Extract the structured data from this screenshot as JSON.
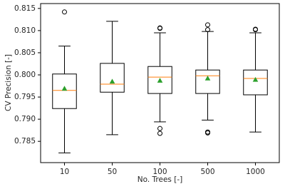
{
  "chart_data": {
    "type": "box",
    "x_label": "No. Trees [-]",
    "y_label": "CV Precision [-]",
    "categories": [
      "10",
      "50",
      "100",
      "500",
      "1000"
    ],
    "boxes": [
      {
        "whislo": 0.7824,
        "q1": 0.7924,
        "med": 0.7965,
        "q3": 0.8002,
        "whishi": 0.8065,
        "mean": 0.7969,
        "fliers": [
          0.8142
        ]
      },
      {
        "whislo": 0.7865,
        "q1": 0.7961,
        "med": 0.7979,
        "q3": 0.8026,
        "whishi": 0.8121,
        "mean": 0.7985,
        "fliers": []
      },
      {
        "whislo": 0.7894,
        "q1": 0.7958,
        "med": 0.7995,
        "q3": 0.8019,
        "whishi": 0.8095,
        "mean": 0.7987,
        "fliers": [
          0.8106,
          0.8105,
          0.7879,
          0.7868
        ]
      },
      {
        "whislo": 0.7898,
        "q1": 0.7958,
        "med": 0.7998,
        "q3": 0.8011,
        "whishi": 0.8098,
        "mean": 0.7992,
        "fliers": [
          0.8113,
          0.8102,
          0.7871,
          0.7869
        ]
      },
      {
        "whislo": 0.7871,
        "q1": 0.7955,
        "med": 0.7992,
        "q3": 0.8011,
        "whishi": 0.8095,
        "mean": 0.7989,
        "fliers": [
          0.8103,
          0.8102
        ]
      }
    ],
    "box_color": "#000000",
    "median_color": "#ff7f0e",
    "mean_color": "#2ca02c",
    "ylim": [
      0.7802,
      0.8161
    ],
    "yticks": [
      0.785,
      {
        "value": 0.79,
        "label": "0.790"
      },
      0.795,
      {
        "value": 0.8,
        "label": "0.800"
      },
      0.805,
      {
        "value": 0.81,
        "label": "0.810"
      },
      0.815
    ]
  }
}
